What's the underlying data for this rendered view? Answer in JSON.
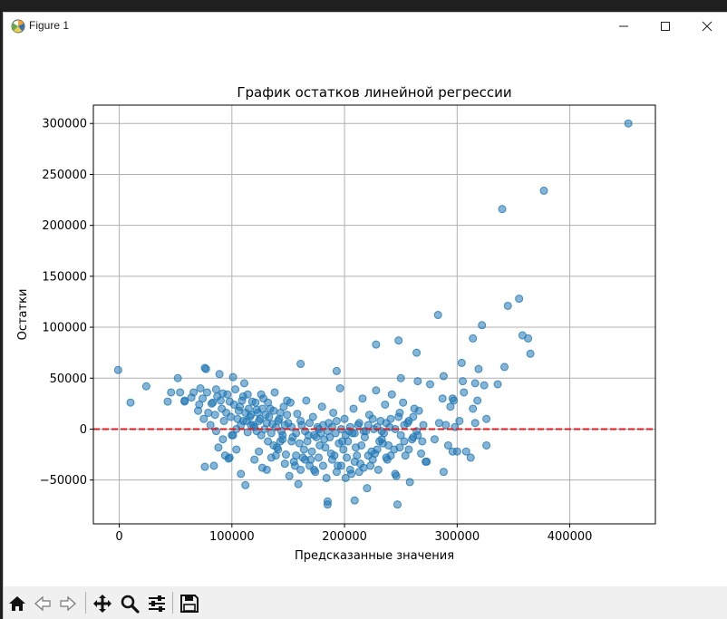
{
  "window": {
    "title": "Figure 1"
  },
  "toolbar": {
    "buttons": [
      {
        "name": "home-button",
        "icon": "home-icon"
      },
      {
        "name": "back-button",
        "icon": "arrow-left-icon"
      },
      {
        "name": "forward-button",
        "icon": "arrow-right-icon"
      },
      {
        "name": "pan-button",
        "icon": "move-icon"
      },
      {
        "name": "zoom-button",
        "icon": "magnifier-icon"
      },
      {
        "name": "configure-subplots-button",
        "icon": "sliders-icon"
      },
      {
        "name": "save-button",
        "icon": "floppy-disk-icon"
      }
    ]
  },
  "chart_data": {
    "type": "scatter",
    "title": "График остатков линейной регрессии",
    "xlabel": "Предсказанные значения",
    "ylabel": "Остатки",
    "xlim": [
      -23000,
      476000
    ],
    "ylim": [
      -93000,
      318000
    ],
    "xticks": [
      0,
      100000,
      200000,
      300000,
      400000
    ],
    "xtick_labels": [
      "0",
      "100000",
      "200000",
      "300000",
      "400000"
    ],
    "yticks": [
      -50000,
      0,
      50000,
      100000,
      150000,
      200000,
      250000,
      300000
    ],
    "ytick_labels": [
      "−50000",
      "0",
      "50000",
      "100000",
      "150000",
      "200000",
      "250000",
      "300000"
    ],
    "grid": true,
    "point_color": "#1f77b4",
    "point_alpha": 0.55,
    "reference_line": {
      "y": 0,
      "color": "#e41a1c",
      "style": "dashed"
    },
    "points": [
      [
        452000,
        300000
      ],
      [
        377000,
        234000
      ],
      [
        340000,
        216000
      ],
      [
        345000,
        121000
      ],
      [
        355000,
        128000
      ],
      [
        358000,
        92000
      ],
      [
        363000,
        89000
      ],
      [
        365000,
        74000
      ],
      [
        322000,
        102000
      ],
      [
        283000,
        112000
      ],
      [
        314000,
        89000
      ],
      [
        264000,
        75000
      ],
      [
        228000,
        83000
      ],
      [
        248000,
        87000
      ],
      [
        342000,
        61000
      ],
      [
        304000,
        65000
      ],
      [
        319000,
        59000
      ],
      [
        336000,
        44000
      ],
      [
        324000,
        43000
      ],
      [
        305000,
        47000
      ],
      [
        316000,
        45000
      ],
      [
        288000,
        52000
      ],
      [
        265000,
        47000
      ],
      [
        250000,
        50000
      ],
      [
        161000,
        64000
      ],
      [
        193000,
        57000
      ],
      [
        -1000,
        58000
      ],
      [
        77000,
        59000
      ],
      [
        52000,
        50000
      ],
      [
        101000,
        51000
      ],
      [
        111000,
        45000
      ],
      [
        24000,
        42000
      ],
      [
        10000,
        26000
      ],
      [
        43000,
        27000
      ],
      [
        46000,
        36000
      ],
      [
        54000,
        36000
      ],
      [
        58000,
        28000
      ],
      [
        64000,
        31000
      ],
      [
        70000,
        18000
      ],
      [
        72000,
        40000
      ],
      [
        78000,
        36000
      ],
      [
        82000,
        25000
      ],
      [
        86000,
        39000
      ],
      [
        89000,
        54000
      ],
      [
        90000,
        28000
      ],
      [
        95000,
        16000
      ],
      [
        98000,
        27000
      ],
      [
        103000,
        39000
      ],
      [
        105000,
        10000
      ],
      [
        107000,
        22000
      ],
      [
        108000,
        4000
      ],
      [
        110000,
        32000
      ],
      [
        112000,
        16000
      ],
      [
        114000,
        -3000
      ],
      [
        116000,
        12000
      ],
      [
        118000,
        27000
      ],
      [
        120000,
        2000
      ],
      [
        122000,
        19000
      ],
      [
        124000,
        8000
      ],
      [
        126000,
        -6000
      ],
      [
        128000,
        30000
      ],
      [
        130000,
        14000
      ],
      [
        132000,
        -12000
      ],
      [
        134000,
        20000
      ],
      [
        136000,
        5000
      ],
      [
        138000,
        36000
      ],
      [
        140000,
        -18000
      ],
      [
        142000,
        10000
      ],
      [
        144000,
        -2000
      ],
      [
        146000,
        22000
      ],
      [
        148000,
        -25000
      ],
      [
        150000,
        6000
      ],
      [
        152000,
        26000
      ],
      [
        154000,
        -8000
      ],
      [
        156000,
        -36000
      ],
      [
        158000,
        15000
      ],
      [
        160000,
        -14000
      ],
      [
        162000,
        4000
      ],
      [
        164000,
        -20000
      ],
      [
        166000,
        28000
      ],
      [
        168000,
        -6000
      ],
      [
        170000,
        -30000
      ],
      [
        172000,
        12000
      ],
      [
        174000,
        -42000
      ],
      [
        176000,
        2000
      ],
      [
        178000,
        -16000
      ],
      [
        180000,
        22000
      ],
      [
        182000,
        -10000
      ],
      [
        184000,
        -48000
      ],
      [
        186000,
        6000
      ],
      [
        188000,
        -24000
      ],
      [
        190000,
        16000
      ],
      [
        192000,
        -4000
      ],
      [
        194000,
        -36000
      ],
      [
        196000,
        40000
      ],
      [
        198000,
        -12000
      ],
      [
        200000,
        10000
      ],
      [
        202000,
        -28000
      ],
      [
        204000,
        -2000
      ],
      [
        206000,
        -44000
      ],
      [
        208000,
        20000
      ],
      [
        210000,
        -18000
      ],
      [
        212000,
        4000
      ],
      [
        214000,
        -34000
      ],
      [
        216000,
        30000
      ],
      [
        218000,
        -8000
      ],
      [
        220000,
        -58000
      ],
      [
        222000,
        14000
      ],
      [
        224000,
        -22000
      ],
      [
        226000,
        0
      ],
      [
        228000,
        38000
      ],
      [
        230000,
        -40000
      ],
      [
        232000,
        8000
      ],
      [
        234000,
        -14000
      ],
      [
        236000,
        24000
      ],
      [
        238000,
        -30000
      ],
      [
        240000,
        2000
      ],
      [
        242000,
        34000
      ],
      [
        244000,
        -20000
      ],
      [
        246000,
        -46000
      ],
      [
        248000,
        12000
      ],
      [
        250000,
        -6000
      ],
      [
        252000,
        26000
      ],
      [
        254000,
        -26000
      ],
      [
        256000,
        6000
      ],
      [
        258000,
        -52000
      ],
      [
        260000,
        -10000
      ],
      [
        262000,
        20000
      ],
      [
        264000,
        -2000
      ],
      [
        266000,
        18000
      ],
      [
        268000,
        -24000
      ],
      [
        270000,
        4000
      ],
      [
        272000,
        -32000
      ],
      [
        276000,
        44000
      ],
      [
        280000,
        -10000
      ],
      [
        284000,
        6000
      ],
      [
        287000,
        30000
      ],
      [
        288000,
        -42000
      ],
      [
        290000,
        4000
      ],
      [
        292000,
        -16000
      ],
      [
        294000,
        22000
      ],
      [
        296000,
        30000
      ],
      [
        298000,
        2000
      ],
      [
        300000,
        -22000
      ],
      [
        302000,
        8000
      ],
      [
        306000,
        36000
      ],
      [
        308000,
        -22000
      ],
      [
        312000,
        -28000
      ],
      [
        314000,
        20000
      ],
      [
        316000,
        6000
      ],
      [
        318000,
        28000
      ],
      [
        326000,
        10000
      ],
      [
        326000,
        -16000
      ],
      [
        296000,
        -22000
      ],
      [
        297000,
        28000
      ],
      [
        185000,
        -71000
      ],
      [
        185000,
        -74000
      ],
      [
        209000,
        -70000
      ],
      [
        247000,
        -74000
      ],
      [
        112000,
        -55000
      ],
      [
        98000,
        -28000
      ],
      [
        100000,
        -6000
      ],
      [
        92000,
        -10000
      ],
      [
        88000,
        -18000
      ],
      [
        86000,
        -2000
      ],
      [
        94000,
        -26000
      ],
      [
        84000,
        -36000
      ],
      [
        104000,
        -20000
      ],
      [
        108000,
        -44000
      ],
      [
        120000,
        -30000
      ],
      [
        124000,
        -22000
      ],
      [
        127000,
        -38000
      ],
      [
        131000,
        -40000
      ],
      [
        135000,
        -28000
      ],
      [
        139000,
        -26000
      ],
      [
        143000,
        -12000
      ],
      [
        147000,
        -34000
      ],
      [
        151000,
        -46000
      ],
      [
        155000,
        -32000
      ],
      [
        159000,
        -54000
      ],
      [
        163000,
        -28000
      ],
      [
        167000,
        -12000
      ],
      [
        171000,
        -22000
      ],
      [
        175000,
        -8000
      ],
      [
        179000,
        -4000
      ],
      [
        183000,
        -18000
      ],
      [
        187000,
        -8000
      ],
      [
        191000,
        -26000
      ],
      [
        195000,
        -14000
      ],
      [
        199000,
        -20000
      ],
      [
        203000,
        -12000
      ],
      [
        207000,
        -4000
      ],
      [
        211000,
        -26000
      ],
      [
        215000,
        -16000
      ],
      [
        219000,
        -2000
      ],
      [
        223000,
        -36000
      ],
      [
        227000,
        -24000
      ],
      [
        231000,
        -12000
      ],
      [
        235000,
        -4000
      ],
      [
        239000,
        -16000
      ],
      [
        75000,
        10000
      ],
      [
        79000,
        16000
      ],
      [
        81000,
        4000
      ],
      [
        83000,
        26000
      ],
      [
        85000,
        14000
      ],
      [
        87000,
        32000
      ],
      [
        91000,
        20000
      ],
      [
        93000,
        8000
      ],
      [
        96000,
        34000
      ],
      [
        99000,
        12000
      ],
      [
        102000,
        24000
      ],
      [
        106000,
        18000
      ],
      [
        109000,
        28000
      ],
      [
        113000,
        8000
      ],
      [
        115000,
        20000
      ],
      [
        117000,
        14000
      ],
      [
        119000,
        4000
      ],
      [
        121000,
        26000
      ],
      [
        123000,
        16000
      ],
      [
        125000,
        10000
      ],
      [
        127000,
        20000
      ],
      [
        129000,
        0
      ],
      [
        131000,
        6000
      ],
      [
        133000,
        12000
      ],
      [
        135000,
        -4000
      ],
      [
        137000,
        18000
      ],
      [
        139000,
        2000
      ],
      [
        141000,
        8000
      ],
      [
        143000,
        16000
      ],
      [
        145000,
        -6000
      ],
      [
        147000,
        4000
      ],
      [
        149000,
        14000
      ],
      [
        153000,
        2000
      ],
      [
        157000,
        -4000
      ],
      [
        161000,
        8000
      ],
      [
        165000,
        -2000
      ],
      [
        169000,
        6000
      ],
      [
        173000,
        -6000
      ],
      [
        177000,
        0
      ],
      [
        181000,
        4000
      ],
      [
        185000,
        -2000
      ],
      [
        189000,
        2000
      ],
      [
        193000,
        8000
      ],
      [
        197000,
        0
      ],
      [
        201000,
        -6000
      ],
      [
        205000,
        2000
      ],
      [
        209000,
        -4000
      ],
      [
        213000,
        6000
      ],
      [
        217000,
        -2000
      ],
      [
        221000,
        4000
      ],
      [
        225000,
        10000
      ],
      [
        229000,
        2000
      ],
      [
        233000,
        -2000
      ],
      [
        237000,
        6000
      ],
      [
        241000,
        10000
      ],
      [
        245000,
        0
      ],
      [
        249000,
        16000
      ],
      [
        253000,
        4000
      ],
      [
        257000,
        8000
      ],
      [
        261000,
        12000
      ],
      [
        76000,
        -37000
      ],
      [
        58000,
        27000
      ],
      [
        66000,
        36000
      ],
      [
        71000,
        24000
      ],
      [
        74000,
        30000
      ],
      [
        76000,
        60000
      ],
      [
        92000,
        35000
      ],
      [
        97000,
        -29000
      ],
      [
        101000,
        -6000
      ],
      [
        104000,
        0
      ],
      [
        110000,
        8000
      ],
      [
        114000,
        34000
      ],
      [
        117000,
        4000
      ],
      [
        122000,
        -2000
      ],
      [
        126000,
        34000
      ],
      [
        132000,
        26000
      ],
      [
        137000,
        -16000
      ],
      [
        141000,
        -20000
      ],
      [
        145000,
        -10000
      ],
      [
        149000,
        28000
      ],
      [
        153000,
        -12000
      ],
      [
        157000,
        -26000
      ],
      [
        161000,
        -40000
      ],
      [
        165000,
        -30000
      ],
      [
        169000,
        -36000
      ],
      [
        173000,
        -40000
      ],
      [
        177000,
        -28000
      ],
      [
        181000,
        -36000
      ],
      [
        189000,
        -30000
      ],
      [
        193000,
        -42000
      ],
      [
        197000,
        -36000
      ],
      [
        201000,
        -48000
      ],
      [
        205000,
        -40000
      ],
      [
        209000,
        -32000
      ],
      [
        213000,
        -42000
      ],
      [
        217000,
        -38000
      ],
      [
        221000,
        -26000
      ],
      [
        225000,
        -30000
      ],
      [
        229000,
        -20000
      ],
      [
        233000,
        -10000
      ],
      [
        237000,
        -28000
      ],
      [
        241000,
        -26000
      ],
      [
        245000,
        -44000
      ],
      [
        249000,
        -18000
      ],
      [
        253000,
        -12000
      ],
      [
        257000,
        -20000
      ],
      [
        261000,
        -8000
      ],
      [
        265000,
        -6000
      ],
      [
        269000,
        -12000
      ],
      [
        273000,
        -32000
      ]
    ]
  }
}
